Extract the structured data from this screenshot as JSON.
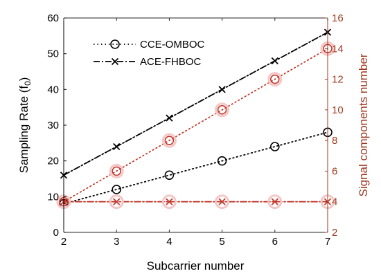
{
  "chart_data": {
    "type": "line",
    "x": [
      2,
      3,
      4,
      5,
      6,
      7
    ],
    "xlabel": "Subcarrier number",
    "ylabel_left": "Sampling Rate (f",
    "ylabel_left_sub": "0",
    "ylabel_left_close": ")",
    "ylabel_right": "Signal components number",
    "xlim": [
      2,
      7
    ],
    "ylim_left": [
      0,
      60
    ],
    "ylim_right": [
      2,
      16
    ],
    "xticks": [
      "2",
      "3",
      "4",
      "5",
      "6",
      "7"
    ],
    "yticks_left": [
      "0",
      "10",
      "20",
      "30",
      "40",
      "50",
      "60"
    ],
    "yticks_right": [
      "2",
      "4",
      "6",
      "8",
      "10",
      "12",
      "14",
      "16"
    ],
    "legend_placement": "top-left",
    "series": [
      {
        "name": "CCE-OMBOC",
        "axis": "left",
        "values": [
          8,
          12,
          16,
          20,
          24,
          28
        ],
        "color": "#000000",
        "line": "dotted",
        "marker": "circle",
        "in_legend": true
      },
      {
        "name": "ACE-FHBOC",
        "axis": "left",
        "values": [
          16,
          24,
          32,
          40,
          48,
          56
        ],
        "color": "#000000",
        "line": "dashdot",
        "marker": "x",
        "in_legend": true
      },
      {
        "name": "",
        "axis": "right",
        "values": [
          4,
          6,
          8,
          10,
          12,
          14
        ],
        "color": "#c0392b",
        "line": "dotted",
        "marker": "circle",
        "in_legend": false
      },
      {
        "name": "",
        "axis": "right",
        "values": [
          4,
          4,
          4,
          4,
          4,
          4
        ],
        "color": "#c0392b",
        "line": "dashdot",
        "marker": "x",
        "in_legend": false
      }
    ],
    "colors": {
      "left_axis": "#000000",
      "right_axis": "#a0391f",
      "marker_halo": "#f4c6c6"
    }
  }
}
